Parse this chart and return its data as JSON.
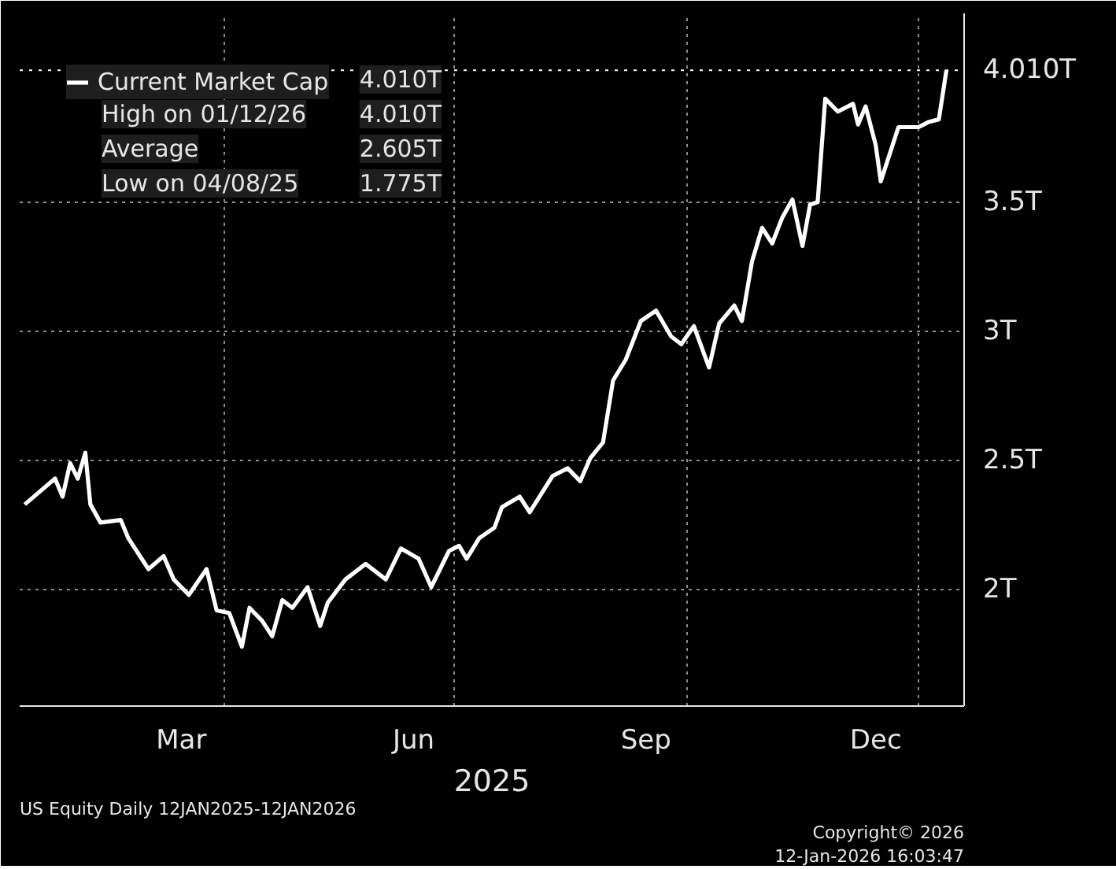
{
  "chart_data": {
    "type": "line",
    "xlabel": "2025",
    "x": [
      "2025-01-12",
      "2025-01-24",
      "2025-01-27",
      "2025-01-30",
      "2025-02-02",
      "2025-02-05",
      "2025-02-07",
      "2025-02-11",
      "2025-02-19",
      "2025-02-22",
      "2025-03-02",
      "2025-03-08",
      "2025-03-12",
      "2025-03-18",
      "2025-03-25",
      "2025-03-29",
      "2025-04-03",
      "2025-04-08",
      "2025-04-11",
      "2025-04-16",
      "2025-04-20",
      "2025-04-24",
      "2025-04-28",
      "2025-05-04",
      "2025-05-09",
      "2025-05-12",
      "2025-05-19",
      "2025-05-27",
      "2025-06-04",
      "2025-06-10",
      "2025-06-17",
      "2025-06-22",
      "2025-06-29",
      "2025-07-03",
      "2025-07-06",
      "2025-07-11",
      "2025-07-17",
      "2025-07-20",
      "2025-07-27",
      "2025-07-31",
      "2025-08-09",
      "2025-08-15",
      "2025-08-20",
      "2025-08-24",
      "2025-08-29",
      "2025-09-02",
      "2025-09-07",
      "2025-09-13",
      "2025-09-19",
      "2025-09-25",
      "2025-09-29",
      "2025-10-04",
      "2025-10-10",
      "2025-10-14",
      "2025-10-20",
      "2025-10-23",
      "2025-10-27",
      "2025-10-31",
      "2025-11-04",
      "2025-11-08",
      "2025-11-12",
      "2025-11-16",
      "2025-11-19",
      "2025-11-22",
      "2025-11-25",
      "2025-11-30",
      "2025-12-06",
      "2025-12-08",
      "2025-12-11",
      "2025-12-15",
      "2025-12-17",
      "2025-12-24",
      "2026-01-01",
      "2026-01-05",
      "2026-01-09",
      "2026-01-12"
    ],
    "series": [
      {
        "name": "Current Market Cap",
        "color": "#ffffff",
        "values": [
          2.33,
          2.43,
          2.36,
          2.49,
          2.43,
          2.53,
          2.33,
          2.26,
          2.27,
          2.2,
          2.08,
          2.13,
          2.04,
          1.98,
          2.08,
          1.92,
          1.91,
          1.78,
          1.93,
          1.88,
          1.82,
          1.96,
          1.93,
          2.01,
          1.86,
          1.95,
          2.04,
          2.1,
          2.04,
          2.16,
          2.12,
          2.01,
          2.15,
          2.17,
          2.12,
          2.2,
          2.24,
          2.32,
          2.36,
          2.3,
          2.44,
          2.47,
          2.42,
          2.51,
          2.57,
          2.81,
          2.89,
          3.04,
          3.08,
          2.98,
          2.95,
          3.02,
          2.86,
          3.03,
          3.1,
          3.04,
          3.27,
          3.4,
          3.34,
          3.44,
          3.51,
          3.33,
          3.49,
          3.5,
          3.9,
          3.85,
          3.88,
          3.8,
          3.87,
          3.72,
          3.58,
          3.79,
          3.79,
          3.81,
          3.82,
          4.01
        ]
      }
    ],
    "xlim": [
      "2025-01-10",
      "2026-01-19"
    ],
    "xticks": [
      {
        "value": "2025-03-15",
        "label": "Mar"
      },
      {
        "value": "2025-04-01",
        "label": null
      },
      {
        "value": "2025-06-15",
        "label": "Jun"
      },
      {
        "value": "2025-07-01",
        "label": null
      },
      {
        "value": "2025-09-15",
        "label": "Sep"
      },
      {
        "value": "2025-10-01",
        "label": null
      },
      {
        "value": "2025-12-15",
        "label": "Dec"
      },
      {
        "value": "2026-01-01",
        "label": null
      }
    ],
    "ylim": [
      1.55,
      4.23
    ],
    "yticks": [
      {
        "value": 2,
        "label": "2T"
      },
      {
        "value": 2.5,
        "label": "2.5T"
      },
      {
        "value": 3,
        "label": "3T"
      },
      {
        "value": 3.5,
        "label": "3.5T"
      }
    ],
    "ref_lines": [
      {
        "axis": "y",
        "value": 4.01,
        "label": "4.010T",
        "color": "#ffffff",
        "line_style": "dotted"
      }
    ],
    "grid": true,
    "legend": "top left",
    "marker": "none",
    "line_style": "solid",
    "annotations": [
      "4.010T",
      "High on 01/12/26",
      "4.010T",
      "Average",
      "2.605T",
      "Low on 04/08/25",
      "1.775T",
      "US Equity Daily 12JAN2025-12JAN2026",
      "Copyright© 2026",
      "12-Jan-2026 16:03:47"
    ]
  }
}
